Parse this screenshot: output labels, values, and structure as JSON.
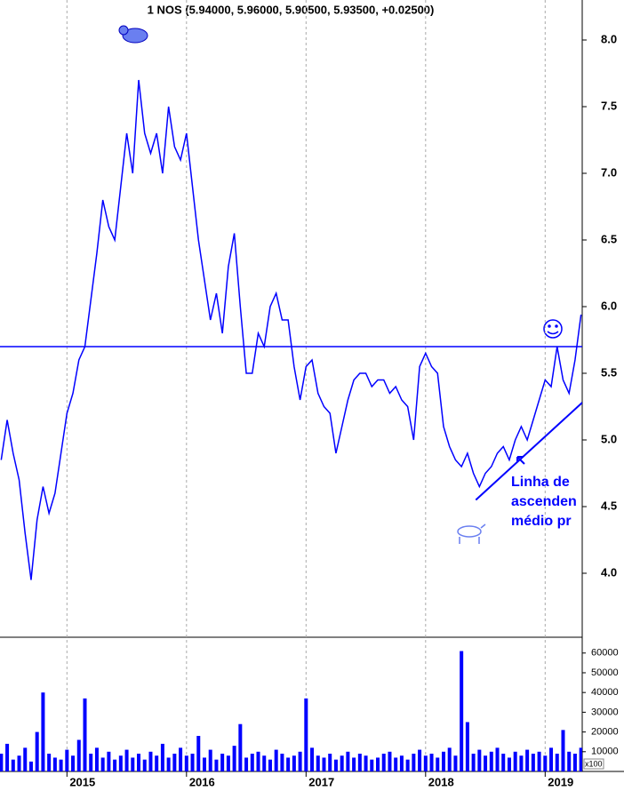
{
  "chart_data": {
    "type": "line",
    "title": "1 NOS (5.94000, 5.96000, 5.90500, 5.93500, +0.02500)",
    "x": [
      2014.45,
      2014.5,
      2014.55,
      2014.6,
      2014.65,
      2014.7,
      2014.75,
      2014.8,
      2014.85,
      2014.9,
      2014.95,
      2015.0,
      2015.05,
      2015.1,
      2015.15,
      2015.2,
      2015.25,
      2015.3,
      2015.35,
      2015.4,
      2015.45,
      2015.5,
      2015.55,
      2015.6,
      2015.65,
      2015.7,
      2015.75,
      2015.8,
      2015.85,
      2015.9,
      2015.95,
      2016.0,
      2016.05,
      2016.1,
      2016.15,
      2016.2,
      2016.25,
      2016.3,
      2016.35,
      2016.4,
      2016.45,
      2016.5,
      2016.55,
      2016.6,
      2016.65,
      2016.7,
      2016.75,
      2016.8,
      2016.85,
      2016.9,
      2016.95,
      2017.0,
      2017.05,
      2017.1,
      2017.15,
      2017.2,
      2017.25,
      2017.3,
      2017.35,
      2017.4,
      2017.45,
      2017.5,
      2017.55,
      2017.6,
      2017.65,
      2017.7,
      2017.75,
      2017.8,
      2017.85,
      2017.9,
      2017.95,
      2018.0,
      2018.05,
      2018.1,
      2018.15,
      2018.2,
      2018.25,
      2018.3,
      2018.35,
      2018.4,
      2018.45,
      2018.5,
      2018.55,
      2018.6,
      2018.65,
      2018.7,
      2018.75,
      2018.8,
      2018.85,
      2018.9,
      2018.95,
      2019.0,
      2019.05,
      2019.1,
      2019.15,
      2019.2,
      2019.25,
      2019.3
    ],
    "series": [
      {
        "color": "#0000ff",
        "values": [
          4.85,
          5.15,
          4.9,
          4.7,
          4.3,
          3.95,
          4.4,
          4.65,
          4.45,
          4.6,
          4.9,
          5.2,
          5.35,
          5.6,
          5.7,
          6.05,
          6.4,
          6.8,
          6.6,
          6.5,
          6.9,
          7.3,
          7.0,
          7.7,
          7.3,
          7.15,
          7.3,
          7.0,
          7.5,
          7.2,
          7.1,
          7.3,
          6.9,
          6.5,
          6.2,
          5.9,
          6.1,
          5.8,
          6.3,
          6.55,
          6.0,
          5.5,
          5.5,
          5.8,
          5.7,
          6.0,
          6.1,
          5.9,
          5.9,
          5.55,
          5.3,
          5.55,
          5.6,
          5.35,
          5.25,
          5.2,
          4.9,
          5.1,
          5.3,
          5.45,
          5.5,
          5.5,
          5.4,
          5.45,
          5.45,
          5.35,
          5.4,
          5.3,
          5.25,
          5.0,
          5.55,
          5.65,
          5.55,
          5.5,
          5.1,
          4.95,
          4.85,
          4.8,
          4.9,
          4.75,
          4.65,
          4.75,
          4.8,
          4.9,
          4.95,
          4.85,
          5.0,
          5.1,
          5.0,
          5.15,
          5.3,
          5.45,
          5.4,
          5.7,
          5.45,
          5.35,
          5.6,
          5.94
        ]
      },
      {
        "type": "bar",
        "axis": "y2",
        "color": "#0000ff",
        "values": [
          9000,
          14000,
          6000,
          8000,
          12000,
          5000,
          20000,
          40000,
          9000,
          7000,
          6000,
          11000,
          8000,
          16000,
          37000,
          9000,
          12000,
          7000,
          10000,
          6000,
          8000,
          11000,
          7000,
          9000,
          6000,
          10000,
          8000,
          14000,
          7000,
          9000,
          12000,
          8000,
          9000,
          18000,
          7000,
          11000,
          6000,
          9000,
          8000,
          13000,
          24000,
          7000,
          9000,
          10000,
          8000,
          6000,
          11000,
          9000,
          7000,
          8000,
          10000,
          37000,
          12000,
          8000,
          7000,
          9000,
          6000,
          8000,
          10000,
          7000,
          9000,
          8000,
          6000,
          7000,
          9000,
          10000,
          7000,
          8000,
          6000,
          9000,
          11000,
          8000,
          9000,
          7000,
          10000,
          12000,
          8000,
          61000,
          25000,
          9000,
          11000,
          8000,
          10000,
          12000,
          9000,
          7000,
          10000,
          8000,
          11000,
          9000,
          10000,
          8000,
          12000,
          9000,
          21000,
          10000,
          9000,
          12000
        ]
      }
    ],
    "xlim": [
      2014.44,
      2019.31
    ],
    "xticks": [
      2015,
      2016,
      2017,
      2018,
      2019
    ],
    "ylim": [
      3.52,
      8.3
    ],
    "yticks": [
      {
        "value": 4,
        "label": "4.0"
      },
      4.5,
      {
        "value": 5,
        "label": "5.0"
      },
      5.5,
      {
        "value": 6,
        "label": "6.0"
      },
      6.5,
      {
        "value": 7,
        "label": "7.0"
      },
      7.5,
      {
        "value": 8,
        "label": "8.0"
      }
    ],
    "y2lim": [
      0,
      68000
    ],
    "y2ticks": [
      10000,
      20000,
      30000,
      40000,
      50000,
      60000
    ],
    "volume_unit": "x100",
    "hline": 5.7,
    "trendline": {
      "x": [
        2018.42,
        2019.31
      ],
      "y": [
        4.55,
        5.28
      ]
    },
    "annotations": [
      "Linha de",
      "ascenden",
      "médio pr"
    ],
    "grid": true
  }
}
